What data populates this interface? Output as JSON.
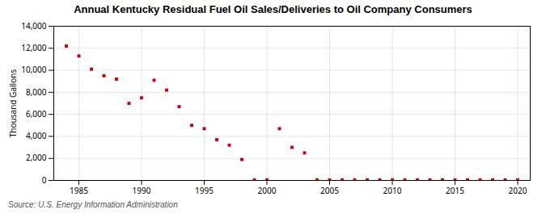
{
  "chart_data": {
    "type": "scatter",
    "title": "Annual Kentucky Residual Fuel Oil Sales/Deliveries to Oil Company Consumers",
    "ylabel": "Thousand Gallons",
    "source": "Source: U.S. Energy Information Administration",
    "color": "#cc0000",
    "marker": "square",
    "grid": true,
    "xlim": [
      1983,
      2021
    ],
    "ylim": [
      0,
      14000
    ],
    "xticks": [
      1985,
      1990,
      1995,
      2000,
      2005,
      2010,
      2015,
      2020
    ],
    "yticks": [
      0,
      {
        "value": 2000,
        "label": "2,000"
      },
      {
        "value": 4000,
        "label": "4,000"
      },
      {
        "value": 6000,
        "label": "6,000"
      },
      {
        "value": 8000,
        "label": "8,000"
      },
      {
        "value": 10000,
        "label": "10,000"
      },
      {
        "value": 12000,
        "label": "12,000"
      },
      {
        "value": 14000,
        "label": "14,000"
      }
    ],
    "x": [
      1984,
      1985,
      1986,
      1987,
      1988,
      1989,
      1990,
      1991,
      1992,
      1993,
      1994,
      1995,
      1996,
      1997,
      1998,
      1999,
      2000,
      2001,
      2002,
      2003,
      2004,
      2005,
      2006,
      2007,
      2008,
      2009,
      2010,
      2011,
      2012,
      2013,
      2014,
      2015,
      2016,
      2017,
      2018,
      2019,
      2020
    ],
    "values": [
      12200,
      11300,
      10100,
      9500,
      9200,
      7000,
      7500,
      9100,
      8200,
      6700,
      5000,
      4700,
      3700,
      3200,
      1900,
      50,
      50,
      4700,
      3000,
      2500,
      50,
      50,
      50,
      50,
      50,
      50,
      50,
      50,
      50,
      50,
      50,
      50,
      50,
      50,
      50,
      50,
      50
    ]
  }
}
